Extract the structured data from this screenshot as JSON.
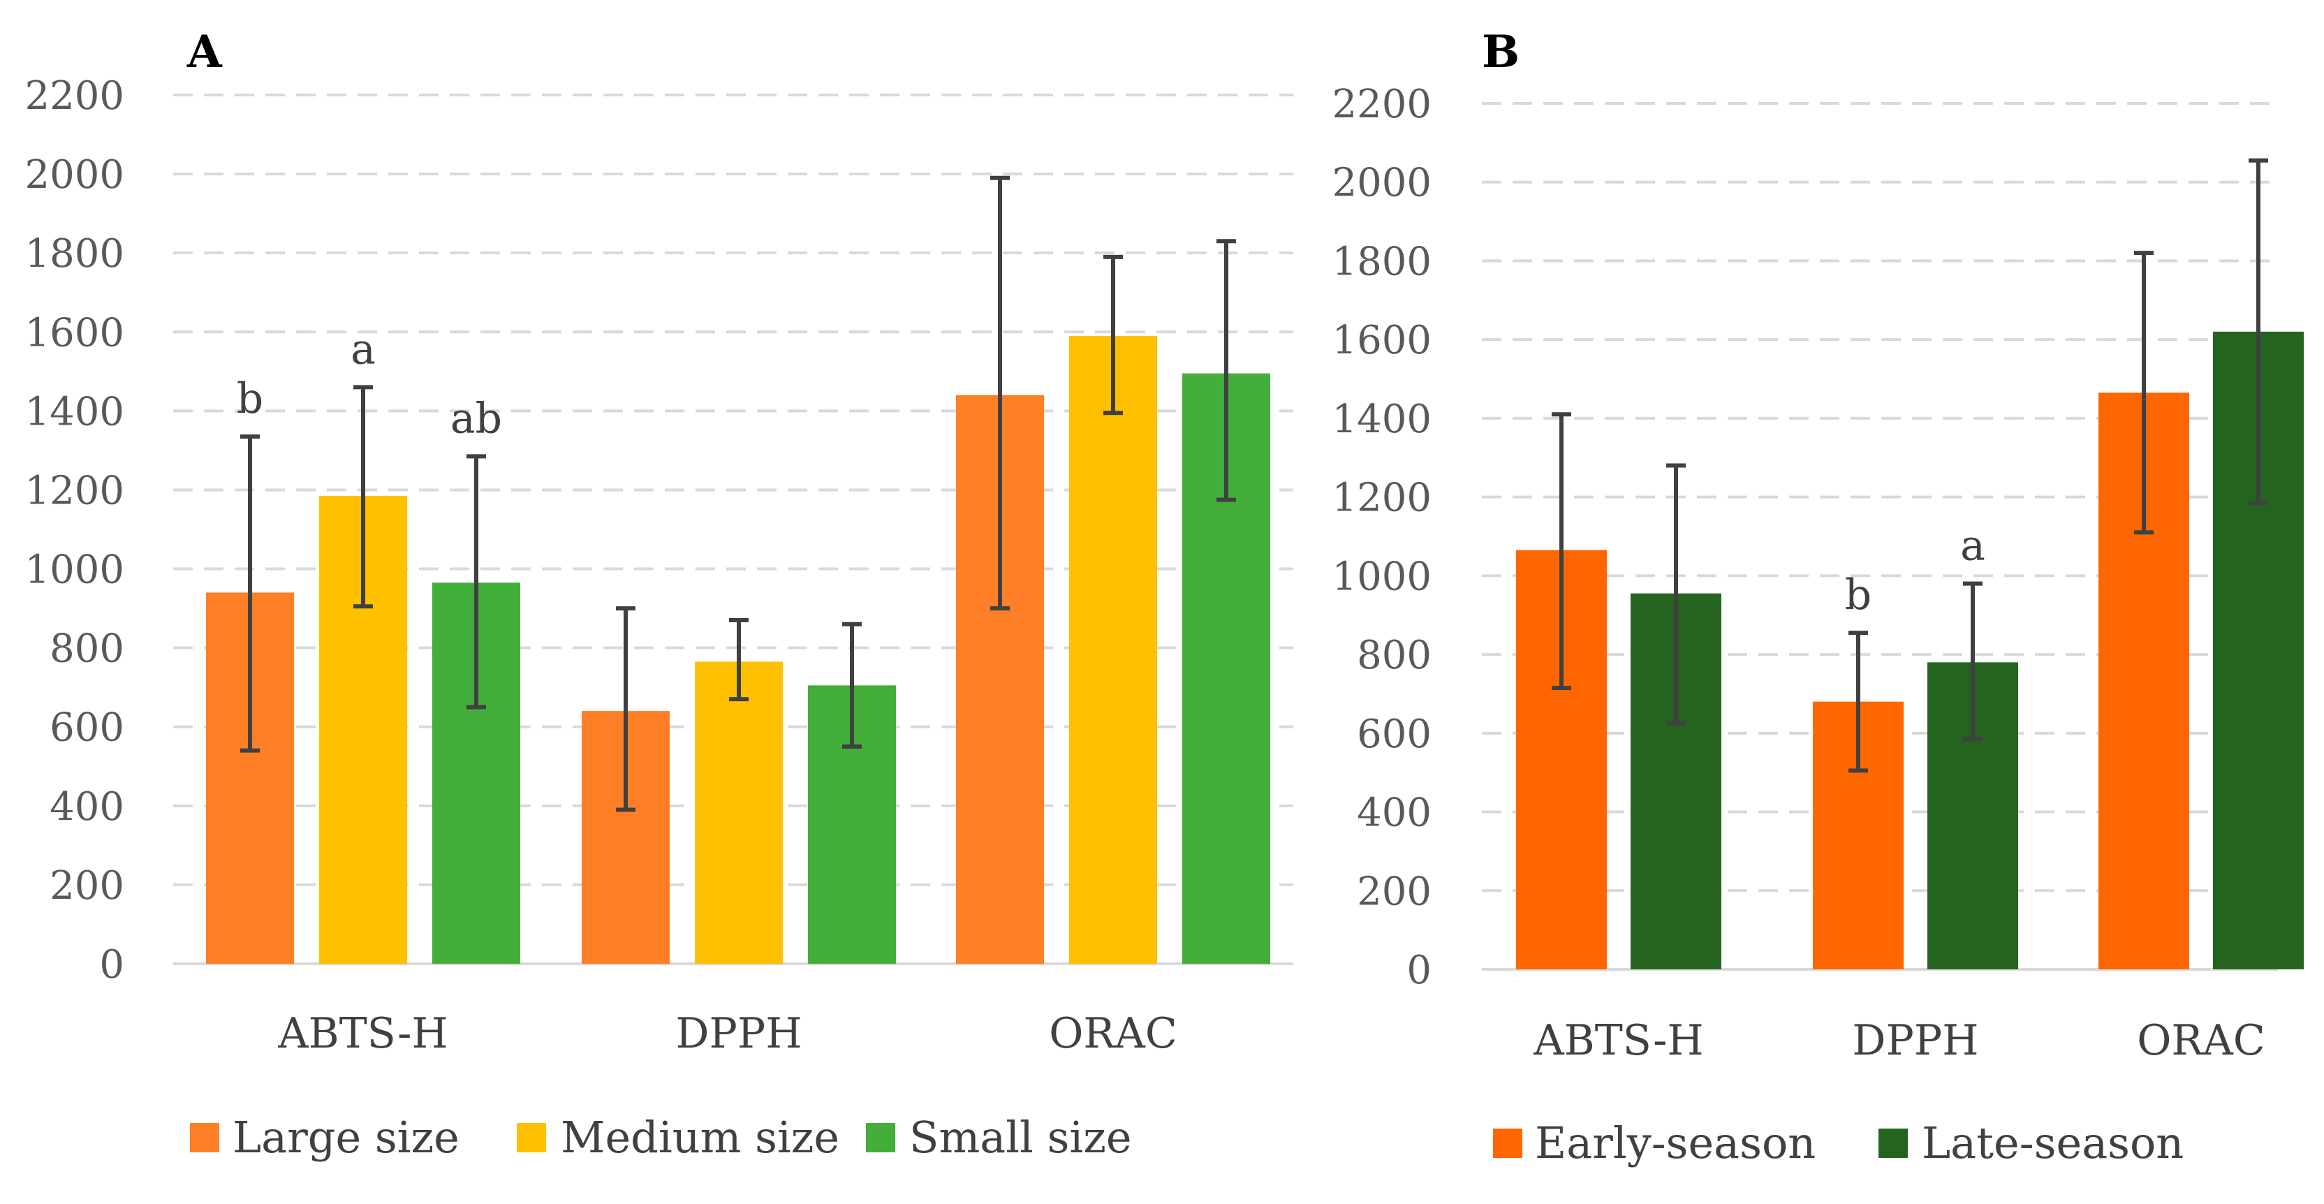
{
  "chart_data": [
    {
      "panel": "A",
      "type": "bar",
      "categories": [
        "ABTS-H",
        "DPPH",
        "ORAC"
      ],
      "ylim": [
        0,
        2200
      ],
      "yticks": [
        0,
        200,
        400,
        600,
        800,
        1000,
        1200,
        1400,
        1600,
        1800,
        2000,
        2200
      ],
      "grid": true,
      "legend_position": "bottom",
      "series": [
        {
          "name": "Large size",
          "color": "#FF7F27",
          "values": [
            940,
            640,
            1440
          ],
          "error_low": [
            540,
            390,
            900
          ],
          "error_high": [
            1335,
            900,
            1990
          ],
          "annotations": [
            "b",
            "",
            ""
          ]
        },
        {
          "name": "Medium size",
          "color": "#FFC000",
          "values": [
            1185,
            765,
            1590
          ],
          "error_low": [
            905,
            670,
            1395
          ],
          "error_high": [
            1460,
            870,
            1790
          ],
          "annotations": [
            "a",
            "",
            ""
          ]
        },
        {
          "name": "Small size",
          "color": "#43AE3A",
          "values": [
            965,
            705,
            1495
          ],
          "error_low": [
            650,
            550,
            1175
          ],
          "error_high": [
            1285,
            860,
            1830
          ],
          "annotations": [
            "ab",
            "",
            ""
          ]
        }
      ]
    },
    {
      "panel": "B",
      "type": "bar",
      "categories": [
        "ABTS-H",
        "DPPH",
        "ORAC"
      ],
      "ylim": [
        0,
        2200
      ],
      "yticks": [
        0,
        200,
        400,
        600,
        800,
        1000,
        1200,
        1400,
        1600,
        1800,
        2000,
        2200
      ],
      "grid": true,
      "legend_position": "bottom",
      "series": [
        {
          "name": "Early-season",
          "color": "#FF6600",
          "values": [
            1065,
            680,
            1465
          ],
          "error_low": [
            715,
            505,
            1110
          ],
          "error_high": [
            1410,
            855,
            1820
          ],
          "annotations": [
            "",
            "b",
            ""
          ]
        },
        {
          "name": "Late-season",
          "color": "#25641F",
          "values": [
            955,
            780,
            1620
          ],
          "error_low": [
            625,
            585,
            1185
          ],
          "error_high": [
            1280,
            980,
            2055
          ],
          "annotations": [
            "",
            "a",
            ""
          ]
        }
      ]
    }
  ]
}
